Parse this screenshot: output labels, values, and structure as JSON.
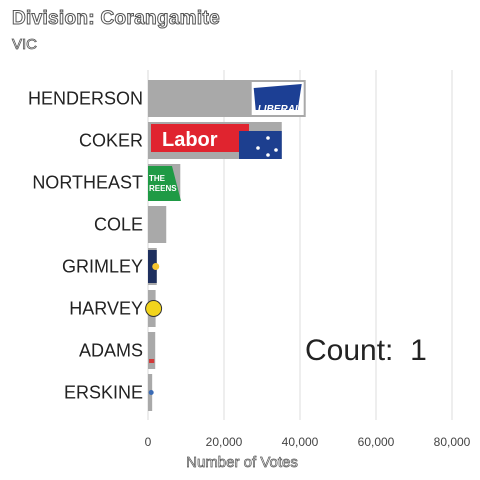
{
  "title": "Division: Corangamite",
  "subtitle": "VIC",
  "count": {
    "label": "Count:",
    "value": "1"
  },
  "chart_data": {
    "type": "bar",
    "orientation": "horizontal",
    "categories": [
      "HENDERSON",
      "COKER",
      "NORTHEAST",
      "COLE",
      "GRIMLEY",
      "HARVEY",
      "ADAMS",
      "ERSKINE"
    ],
    "values": [
      41500,
      35200,
      8500,
      4800,
      2300,
      2000,
      1900,
      1100
    ],
    "xlabel": "Number of Votes",
    "ylabel": "",
    "xlim": [
      0,
      80000
    ],
    "xticks": [
      0,
      20000,
      40000,
      60000,
      80000
    ],
    "xtick_labels": [
      "0",
      "20,000",
      "40,000",
      "60,000",
      "80,000"
    ],
    "bar_color": "#a9a9a9",
    "grid": true,
    "party_logos": [
      "LIBERAL",
      "Labor",
      "THE GREENS",
      "",
      "",
      "",
      "",
      ""
    ]
  }
}
